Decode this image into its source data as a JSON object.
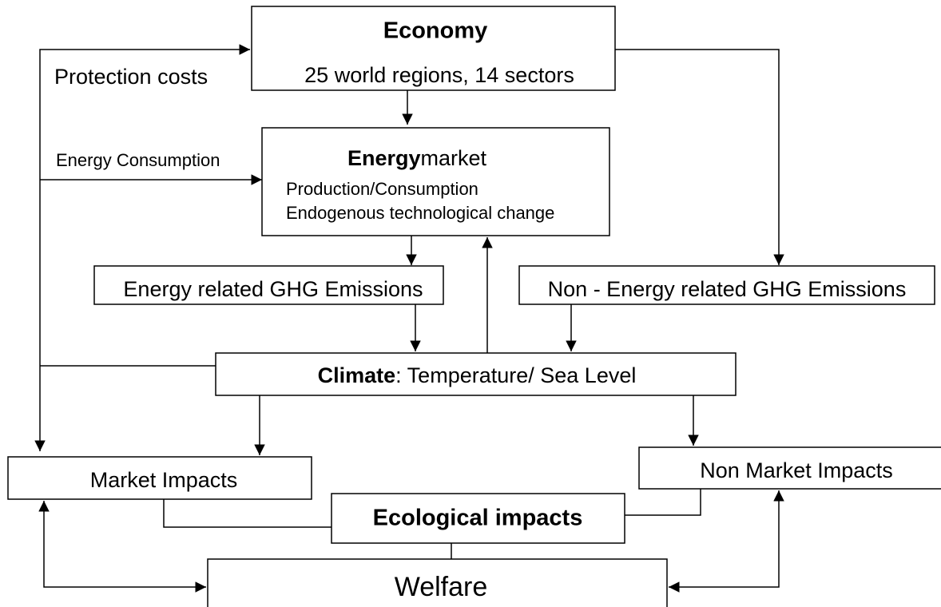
{
  "economy": {
    "title": "Economy",
    "detail": "25 world regions, 14 sectors"
  },
  "links": {
    "protection_costs": "Protection costs",
    "energy_consumption": "Energy Consumption"
  },
  "energy_market": {
    "title_bold": "Energy",
    "title_rest": "market",
    "lines": [
      "Production/Consumption",
      "Endogenous technological change"
    ]
  },
  "energy_emissions": {
    "label": "Energy related GHG Emissions"
  },
  "non_energy_emissions": {
    "label": "Non - Energy related GHG Emissions"
  },
  "climate": {
    "title": "Climate",
    "detail": ": Temperature/ Sea Level"
  },
  "market_impacts": {
    "label": "Market Impacts"
  },
  "non_market_impacts": {
    "label": "Non Market Impacts"
  },
  "ecological_impacts": {
    "label": "Ecological impacts"
  },
  "welfare": {
    "label": "Welfare"
  }
}
